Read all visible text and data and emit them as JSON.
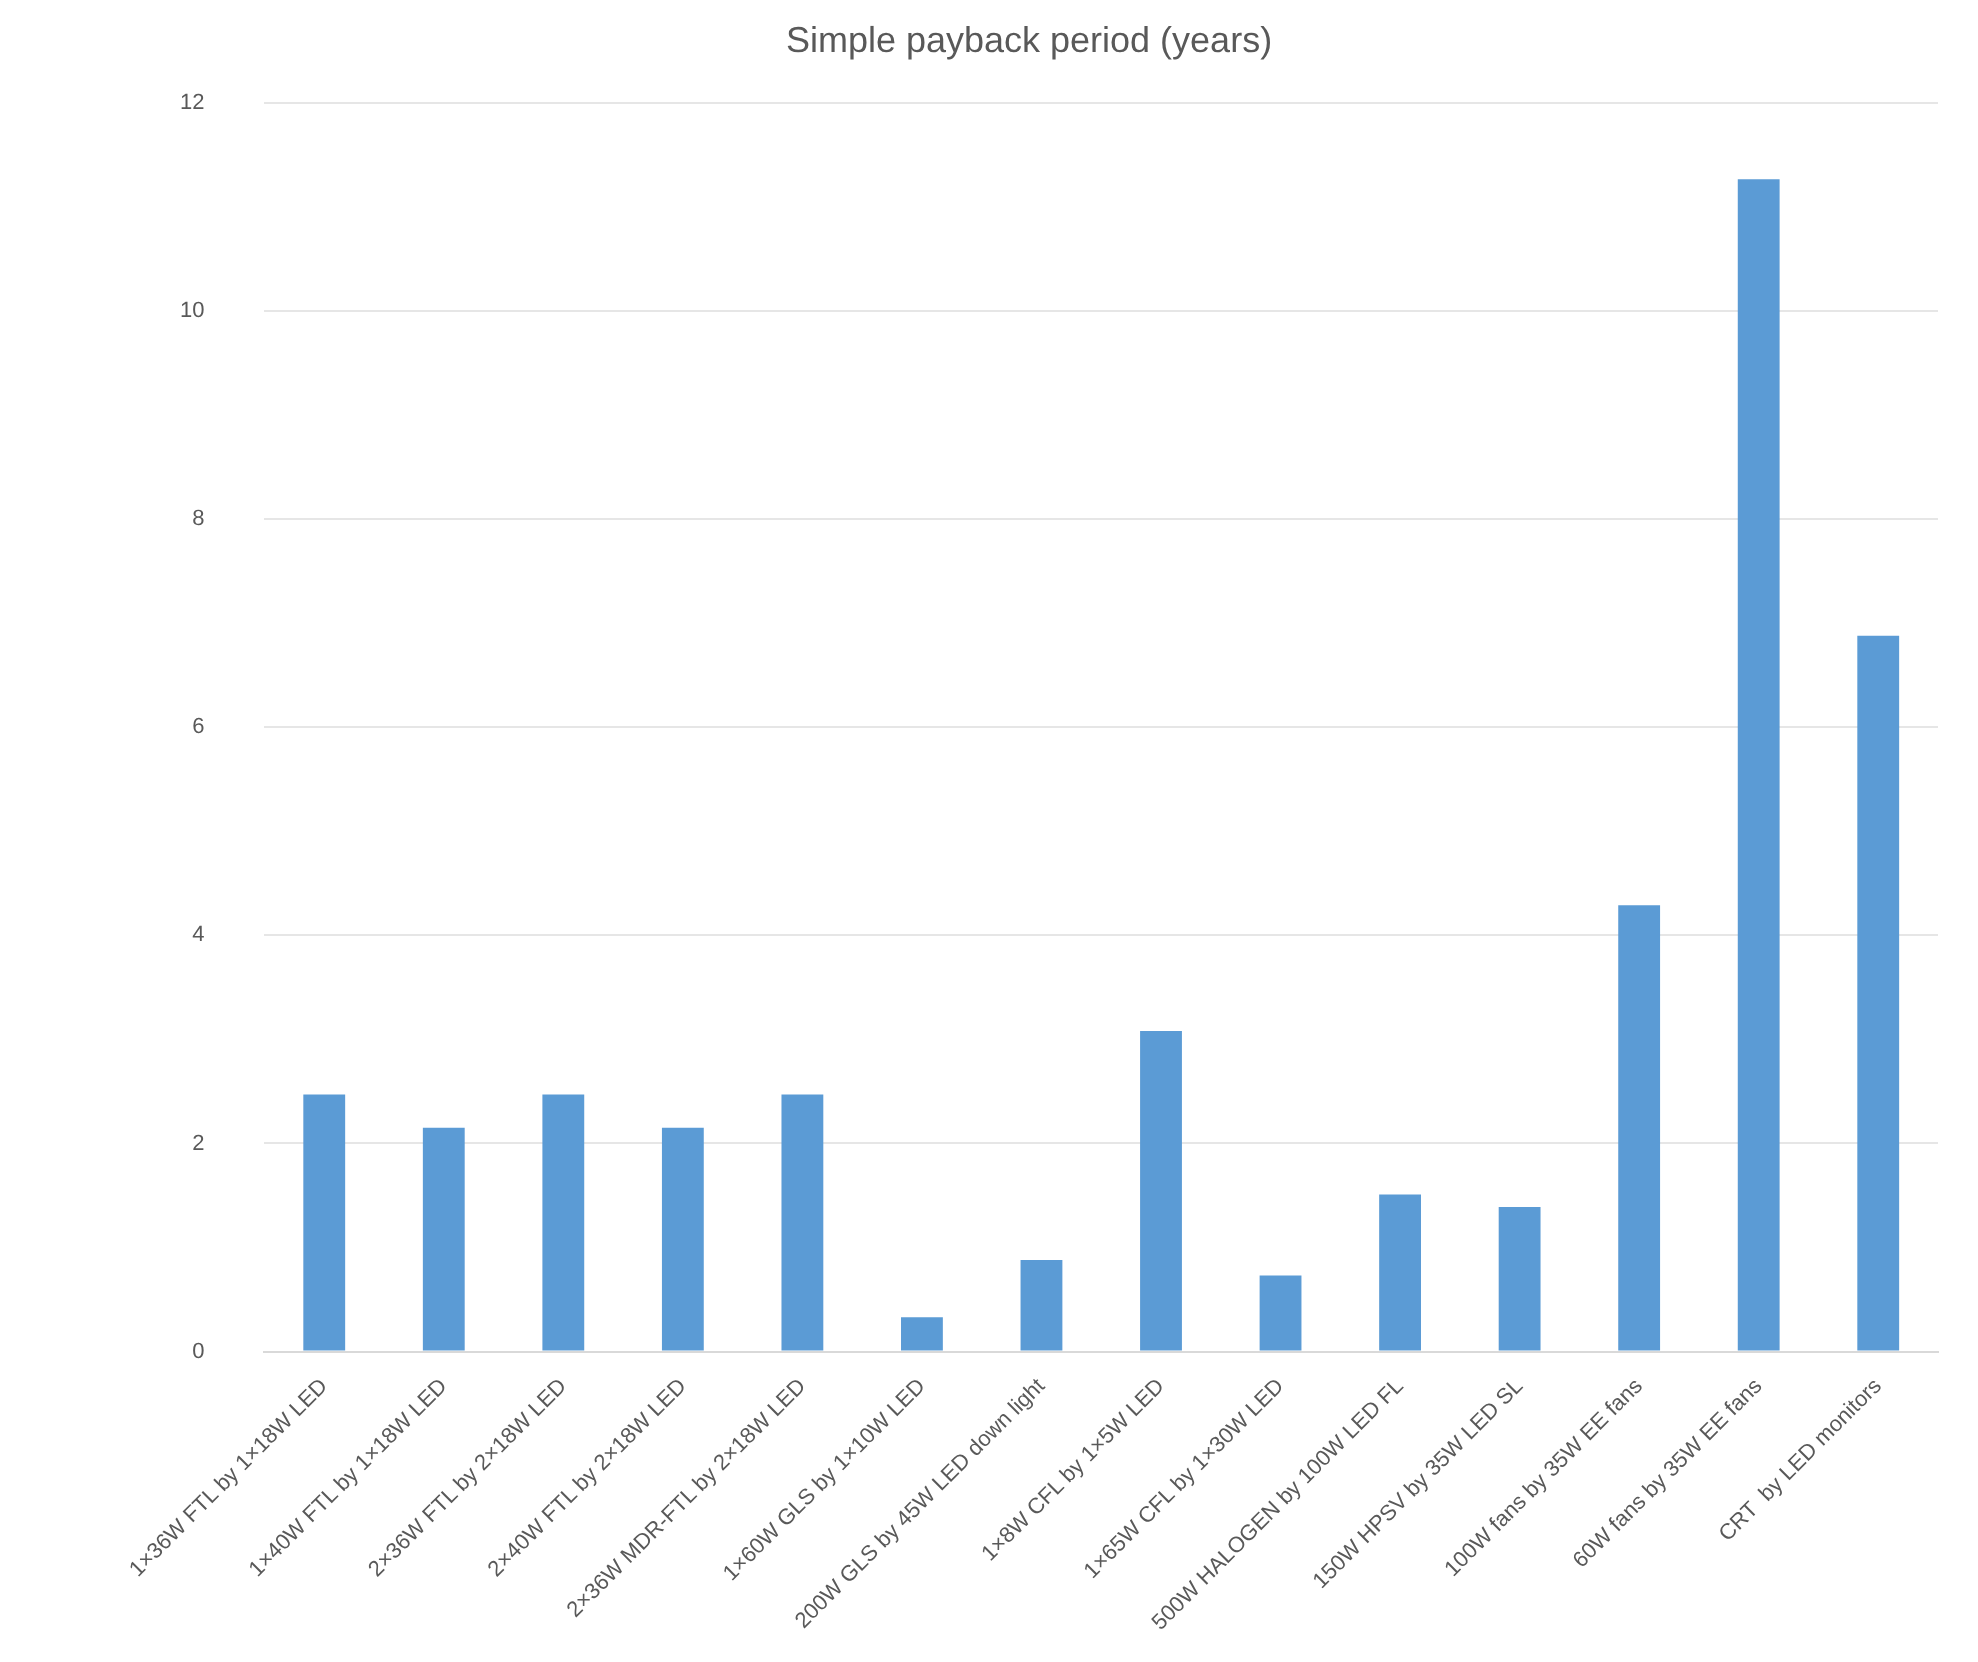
{
  "chart_data": {
    "type": "bar",
    "title": "Simple payback period (years)",
    "categories": [
      "1×36W FTL by 1×18W LED",
      "1×40W FTL by 1×18W LED",
      "2×36W FTL by 2×18W LED",
      "2×40W FTL by 2×18W LED",
      "2×36W MDR-FTL by 2×18W LED",
      "1×60W GLS by 1×10W LED",
      "200W GLS by 45W LED down light",
      "1×8W CFL by 1×5W LED",
      "1×65W CFL by 1×30W LED",
      "500W HALOGEN by 100W LED FL",
      "150W HPSV by 35W LED SL",
      "100W fans by 35W EE fans",
      "60W fans by 35W EE fans",
      "CRT  by LED monitors"
    ],
    "values": [
      2.47,
      2.15,
      2.47,
      2.15,
      2.47,
      0.33,
      0.88,
      3.08,
      0.73,
      1.51,
      1.39,
      4.29,
      11.27,
      6.88
    ],
    "color": "#5b9bd5",
    "ylim": [
      0,
      12
    ],
    "yticks": [
      0,
      2,
      4,
      6,
      8,
      10,
      12
    ],
    "grid": "y",
    "legend": false
  }
}
